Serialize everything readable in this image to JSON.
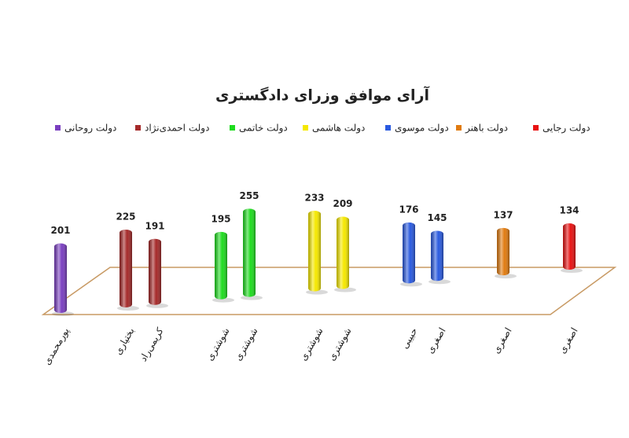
{
  "chart_data": {
    "type": "bar",
    "title": "آرای موافق وزرای دادگستری",
    "categories": [
      "پورمحمدی",
      "بختیاری",
      "کریمی‌راد",
      "شوشتری",
      "شوشتری",
      "شوشتری",
      "شوشتری",
      "حبیبی",
      "اصغری",
      "اصغری",
      "اصغری"
    ],
    "series": [
      {
        "name": "دولت رجایی",
        "color": "#e81212",
        "values": [
          null,
          null,
          null,
          null,
          null,
          null,
          null,
          null,
          null,
          null,
          134
        ]
      },
      {
        "name": "دولت باهنر",
        "color": "#e07b10",
        "values": [
          null,
          null,
          null,
          null,
          null,
          null,
          null,
          null,
          null,
          137,
          null
        ]
      },
      {
        "name": "دولت موسوی",
        "color": "#2a5ae0",
        "values": [
          null,
          null,
          null,
          null,
          null,
          null,
          null,
          176,
          145,
          null,
          null
        ]
      },
      {
        "name": "دولت هاشمی",
        "color": "#f5e800",
        "values": [
          null,
          null,
          null,
          null,
          null,
          233,
          209,
          null,
          null,
          null,
          null
        ]
      },
      {
        "name": "دولت خاتمی",
        "color": "#1fdc1f",
        "values": [
          null,
          null,
          null,
          195,
          255,
          null,
          null,
          null,
          null,
          null,
          null
        ]
      },
      {
        "name": "دولت احمدی‌نژاد",
        "color": "#a52a2a",
        "values": [
          null,
          225,
          191,
          null,
          null,
          null,
          null,
          null,
          null,
          null,
          null
        ]
      },
      {
        "name": "دولت روحانی",
        "color": "#7a3fc0",
        "values": [
          201,
          null,
          null,
          null,
          null,
          null,
          null,
          null,
          null,
          null,
          null
        ]
      }
    ]
  }
}
